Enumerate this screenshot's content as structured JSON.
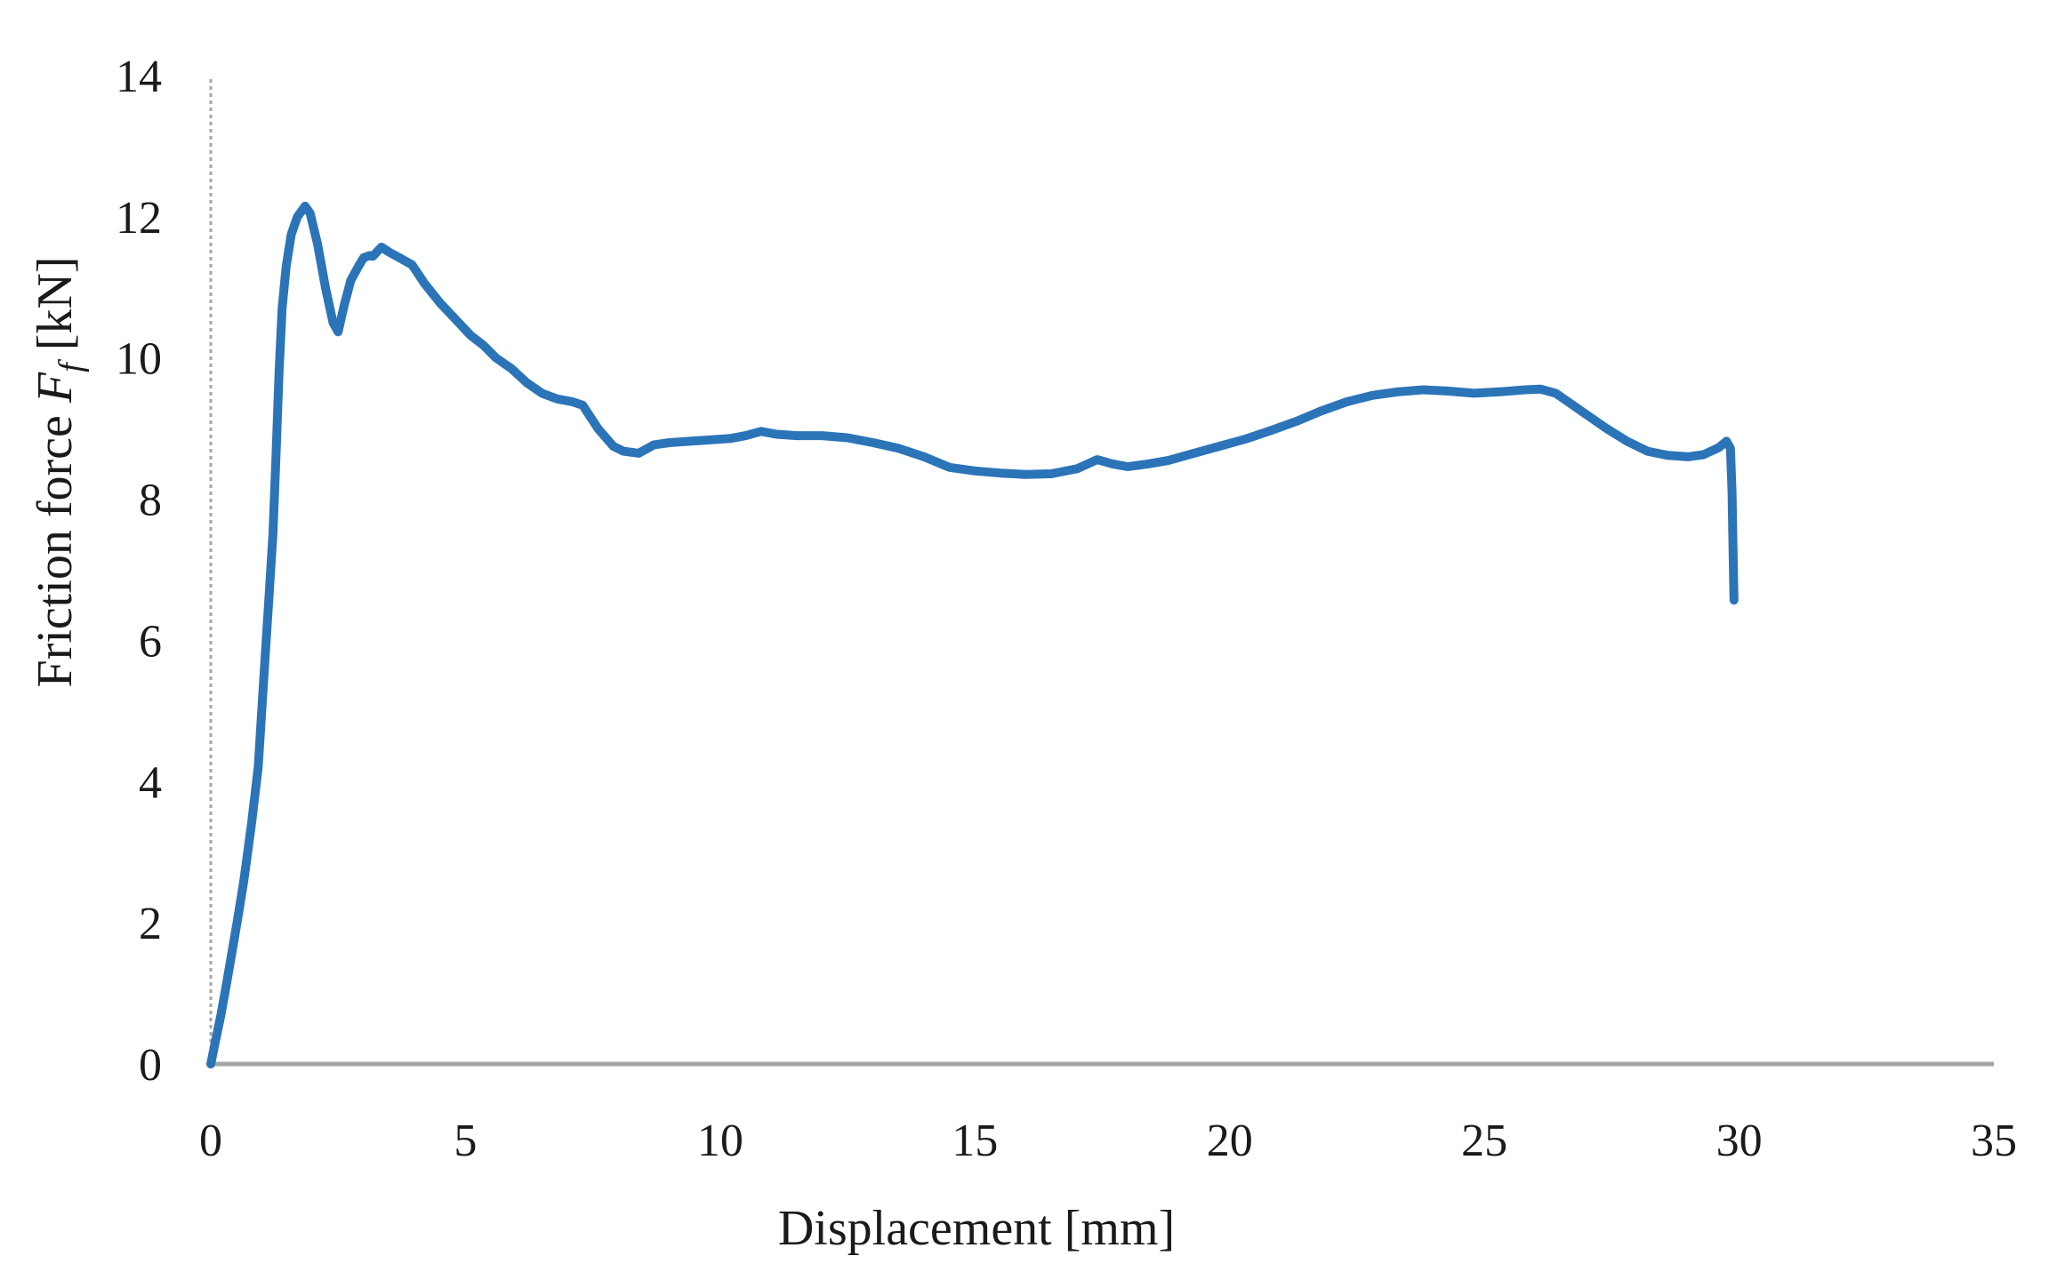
{
  "figure": {
    "background": "#ffffff",
    "text_color": "#1a1a1a",
    "axis_color": "#a6a6a6",
    "accent_color": "#2b74b8"
  },
  "x_axis_title": "Displacement [mm]",
  "y_axis_title": {
    "prefix": "Friction force ",
    "symbol": "F",
    "subscript": "f",
    "suffix": " [kN]"
  },
  "chart_data": {
    "type": "line",
    "title": "",
    "xlabel": "Displacement [mm]",
    "ylabel": "Friction force Ff [kN]",
    "xlim": [
      0,
      35
    ],
    "ylim": [
      0,
      14
    ],
    "x_ticks": [
      0,
      5,
      10,
      15,
      20,
      25,
      30,
      35
    ],
    "y_ticks": [
      0,
      2,
      4,
      6,
      8,
      10,
      12,
      14
    ],
    "grid": false,
    "legend": "none",
    "series": [
      {
        "name": "Friction force",
        "color": "#2b74b8",
        "points": [
          [
            0,
            0
          ],
          [
            0.1,
            0.35
          ],
          [
            0.2,
            0.7
          ],
          [
            0.3,
            1.1
          ],
          [
            0.42,
            1.6
          ],
          [
            0.55,
            2.15
          ],
          [
            0.65,
            2.6
          ],
          [
            0.8,
            3.4
          ],
          [
            0.93,
            4.2
          ],
          [
            1.0,
            5.0
          ],
          [
            1.07,
            5.8
          ],
          [
            1.15,
            6.7
          ],
          [
            1.22,
            7.5
          ],
          [
            1.28,
            8.6
          ],
          [
            1.34,
            9.8
          ],
          [
            1.4,
            10.7
          ],
          [
            1.48,
            11.3
          ],
          [
            1.58,
            11.75
          ],
          [
            1.7,
            12.0
          ],
          [
            1.85,
            12.15
          ],
          [
            1.95,
            12.05
          ],
          [
            2.1,
            11.6
          ],
          [
            2.25,
            11.0
          ],
          [
            2.4,
            10.5
          ],
          [
            2.5,
            10.37
          ],
          [
            2.62,
            10.75
          ],
          [
            2.75,
            11.1
          ],
          [
            2.9,
            11.3
          ],
          [
            3.0,
            11.42
          ],
          [
            3.12,
            11.45
          ],
          [
            3.18,
            11.44
          ],
          [
            3.35,
            11.57
          ],
          [
            3.5,
            11.5
          ],
          [
            3.7,
            11.42
          ],
          [
            3.95,
            11.32
          ],
          [
            4.2,
            11.05
          ],
          [
            4.5,
            10.78
          ],
          [
            4.8,
            10.55
          ],
          [
            5.1,
            10.32
          ],
          [
            5.35,
            10.18
          ],
          [
            5.6,
            10.0
          ],
          [
            5.9,
            9.85
          ],
          [
            6.2,
            9.65
          ],
          [
            6.5,
            9.5
          ],
          [
            6.8,
            9.42
          ],
          [
            7.1,
            9.38
          ],
          [
            7.3,
            9.33
          ],
          [
            7.6,
            9.0
          ],
          [
            7.9,
            8.75
          ],
          [
            8.1,
            8.68
          ],
          [
            8.4,
            8.65
          ],
          [
            8.7,
            8.77
          ],
          [
            9.0,
            8.8
          ],
          [
            9.4,
            8.82
          ],
          [
            9.8,
            8.84
          ],
          [
            10.2,
            8.86
          ],
          [
            10.5,
            8.9
          ],
          [
            10.8,
            8.96
          ],
          [
            11.1,
            8.92
          ],
          [
            11.5,
            8.9
          ],
          [
            12.0,
            8.9
          ],
          [
            12.5,
            8.87
          ],
          [
            13.0,
            8.8
          ],
          [
            13.5,
            8.72
          ],
          [
            14.0,
            8.6
          ],
          [
            14.5,
            8.45
          ],
          [
            15.0,
            8.4
          ],
          [
            15.5,
            8.37
          ],
          [
            16.0,
            8.35
          ],
          [
            16.5,
            8.36
          ],
          [
            17.0,
            8.43
          ],
          [
            17.4,
            8.56
          ],
          [
            17.7,
            8.5
          ],
          [
            18.0,
            8.46
          ],
          [
            18.4,
            8.5
          ],
          [
            18.8,
            8.55
          ],
          [
            19.3,
            8.65
          ],
          [
            19.8,
            8.75
          ],
          [
            20.3,
            8.85
          ],
          [
            20.8,
            8.97
          ],
          [
            21.3,
            9.1
          ],
          [
            21.8,
            9.25
          ],
          [
            22.3,
            9.38
          ],
          [
            22.8,
            9.47
          ],
          [
            23.3,
            9.52
          ],
          [
            23.8,
            9.55
          ],
          [
            24.3,
            9.53
          ],
          [
            24.8,
            9.5
          ],
          [
            25.3,
            9.52
          ],
          [
            25.8,
            9.55
          ],
          [
            26.1,
            9.56
          ],
          [
            26.4,
            9.5
          ],
          [
            26.7,
            9.35
          ],
          [
            27.0,
            9.2
          ],
          [
            27.4,
            9.0
          ],
          [
            27.8,
            8.82
          ],
          [
            28.2,
            8.68
          ],
          [
            28.6,
            8.62
          ],
          [
            29.0,
            8.6
          ],
          [
            29.3,
            8.63
          ],
          [
            29.6,
            8.73
          ],
          [
            29.75,
            8.82
          ],
          [
            29.83,
            8.72
          ],
          [
            29.86,
            8.1
          ],
          [
            29.88,
            7.3
          ],
          [
            29.9,
            6.57
          ]
        ]
      }
    ]
  }
}
